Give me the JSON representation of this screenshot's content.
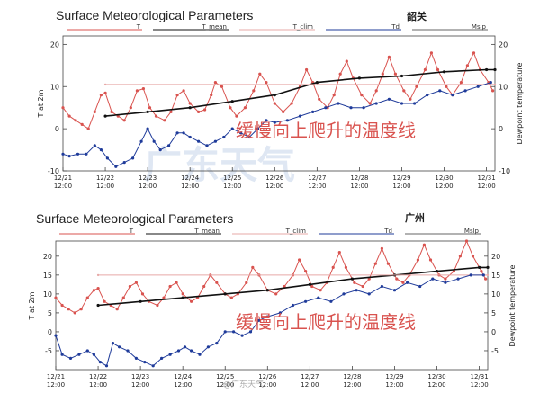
{
  "colors": {
    "T": "#d9534f",
    "T_mean": "#111111",
    "T_clim": "#e7a9a7",
    "Td": "#1f3b9a",
    "Mslp": "#666666",
    "note": "#d9534f",
    "watermark": "#dfe7f3"
  },
  "credit": "@广东天气",
  "chart_data": [
    {
      "type": "line",
      "title": "Surface Meteorological Parameters",
      "station": "韶关",
      "ylabel": "T at 2m",
      "y2label": "Dewpoint temperature",
      "ylim": [
        -10,
        22
      ],
      "yticks": [
        "20",
        "10",
        "0",
        "-10"
      ],
      "y2ticks": [
        "20",
        "10",
        "0",
        "-10"
      ],
      "xlim": [
        0,
        10.2
      ],
      "xticks": [
        {
          "date": "12/21",
          "time": "12:00"
        },
        {
          "date": "12/22",
          "time": "12:00"
        },
        {
          "date": "12/23",
          "time": "12:00"
        },
        {
          "date": "12/24",
          "time": "12:00"
        },
        {
          "date": "12/25",
          "time": "12:00"
        },
        {
          "date": "12/26",
          "time": "12:00"
        },
        {
          "date": "12/27",
          "time": "12:00"
        },
        {
          "date": "12/28",
          "time": "12:00"
        },
        {
          "date": "12/29",
          "time": "12:00"
        },
        {
          "date": "12/30",
          "time": "12:00"
        },
        {
          "date": "12/31",
          "time": "12:00"
        }
      ],
      "legend": [
        "T",
        "T_mean",
        "T_clim",
        "Td",
        "Mslp"
      ],
      "legend_placement": "top",
      "annotation": "缓慢向上爬升的温度线",
      "watermark": "广东天气",
      "grid": false,
      "series": [
        {
          "name": "T",
          "points": [
            [
              0,
              5
            ],
            [
              0.15,
              3
            ],
            [
              0.3,
              2
            ],
            [
              0.45,
              1
            ],
            [
              0.6,
              0
            ],
            [
              0.75,
              4
            ],
            [
              0.9,
              8
            ],
            [
              1,
              8.5
            ],
            [
              1.15,
              4
            ],
            [
              1.3,
              3
            ],
            [
              1.45,
              2
            ],
            [
              1.6,
              5
            ],
            [
              1.75,
              9
            ],
            [
              1.9,
              9.5
            ],
            [
              2.05,
              5
            ],
            [
              2.2,
              3
            ],
            [
              2.4,
              2
            ],
            [
              2.55,
              4
            ],
            [
              2.7,
              8
            ],
            [
              2.85,
              9
            ],
            [
              3,
              6
            ],
            [
              3.2,
              4
            ],
            [
              3.35,
              4.5
            ],
            [
              3.5,
              8
            ],
            [
              3.6,
              11
            ],
            [
              3.75,
              10
            ],
            [
              3.95,
              5
            ],
            [
              4.1,
              3
            ],
            [
              4.3,
              5
            ],
            [
              4.5,
              9
            ],
            [
              4.65,
              13
            ],
            [
              4.8,
              11
            ],
            [
              5,
              6
            ],
            [
              5.2,
              4
            ],
            [
              5.4,
              6
            ],
            [
              5.6,
              10
            ],
            [
              5.75,
              14
            ],
            [
              5.9,
              11
            ],
            [
              6.05,
              7
            ],
            [
              6.25,
              5
            ],
            [
              6.4,
              8
            ],
            [
              6.55,
              13
            ],
            [
              6.7,
              16
            ],
            [
              6.85,
              12
            ],
            [
              7.05,
              8
            ],
            [
              7.25,
              6
            ],
            [
              7.4,
              9
            ],
            [
              7.55,
              13
            ],
            [
              7.7,
              17
            ],
            [
              7.85,
              13
            ],
            [
              8.05,
              9
            ],
            [
              8.2,
              7
            ],
            [
              8.35,
              10
            ],
            [
              8.55,
              14
            ],
            [
              8.7,
              18
            ],
            [
              8.85,
              14
            ],
            [
              9.05,
              10
            ],
            [
              9.2,
              8
            ],
            [
              9.4,
              11
            ],
            [
              9.55,
              15
            ],
            [
              9.7,
              18
            ],
            [
              9.85,
              14
            ],
            [
              10.05,
              11
            ],
            [
              10.15,
              9
            ]
          ]
        },
        {
          "name": "T_mean",
          "points": [
            [
              1,
              3
            ],
            [
              2,
              4
            ],
            [
              3,
              5
            ],
            [
              4,
              6.5
            ],
            [
              5,
              8
            ],
            [
              6,
              11
            ],
            [
              7,
              12
            ],
            [
              8,
              12.5
            ],
            [
              9,
              13.5
            ],
            [
              10,
              14
            ],
            [
              10.2,
              14
            ]
          ]
        },
        {
          "name": "T_clim",
          "points": [
            [
              1,
              10.5
            ],
            [
              10.2,
              10.5
            ]
          ]
        },
        {
          "name": "Td",
          "points": [
            [
              0,
              -6
            ],
            [
              0.15,
              -6.5
            ],
            [
              0.35,
              -6
            ],
            [
              0.55,
              -6
            ],
            [
              0.75,
              -4
            ],
            [
              0.9,
              -5
            ],
            [
              1.05,
              -7
            ],
            [
              1.25,
              -9
            ],
            [
              1.45,
              -8
            ],
            [
              1.65,
              -7
            ],
            [
              1.85,
              -3
            ],
            [
              2,
              0
            ],
            [
              2.15,
              -3
            ],
            [
              2.3,
              -5
            ],
            [
              2.5,
              -4
            ],
            [
              2.7,
              -1
            ],
            [
              2.85,
              -1
            ],
            [
              3,
              -2
            ],
            [
              3.2,
              -3
            ],
            [
              3.4,
              -4
            ],
            [
              3.6,
              -3
            ],
            [
              3.8,
              -2
            ],
            [
              4,
              0
            ],
            [
              4.2,
              -1
            ],
            [
              4.4,
              -2
            ],
            [
              4.6,
              0
            ],
            [
              4.8,
              2
            ],
            [
              5,
              1.5
            ],
            [
              5.3,
              2
            ],
            [
              5.6,
              3
            ],
            [
              5.9,
              4
            ],
            [
              6.2,
              5
            ],
            [
              6.5,
              6
            ],
            [
              6.8,
              5
            ],
            [
              7.1,
              5
            ],
            [
              7.4,
              6
            ],
            [
              7.7,
              7
            ],
            [
              8,
              6
            ],
            [
              8.3,
              6
            ],
            [
              8.6,
              8
            ],
            [
              8.9,
              9
            ],
            [
              9.2,
              8
            ],
            [
              9.5,
              9
            ],
            [
              9.8,
              10
            ],
            [
              10.1,
              11
            ]
          ]
        }
      ]
    },
    {
      "type": "line",
      "title": "Surface Meteorological Parameters",
      "station": "广州",
      "ylabel": "T at 2m",
      "y2label": "Dewpoint temperature",
      "ylim": [
        -10,
        24
      ],
      "yticks": [
        "20",
        "15",
        "10",
        "5",
        "0",
        "-5"
      ],
      "y2ticks": [
        "20",
        "15",
        "10",
        "5",
        "0",
        "-5"
      ],
      "xlim": [
        0,
        10.2
      ],
      "xticks": [
        {
          "date": "12/21",
          "time": "12:00"
        },
        {
          "date": "12/22",
          "time": "12:00"
        },
        {
          "date": "12/23",
          "time": "12:00"
        },
        {
          "date": "12/24",
          "time": "12:00"
        },
        {
          "date": "12/25",
          "time": "12:00"
        },
        {
          "date": "12/26",
          "time": "12:00"
        },
        {
          "date": "12/27",
          "time": "12:00"
        },
        {
          "date": "12/28",
          "time": "12:00"
        },
        {
          "date": "12/29",
          "time": "12:00"
        },
        {
          "date": "12/30",
          "time": "12:00"
        },
        {
          "date": "12/31",
          "time": "12:00"
        }
      ],
      "legend": [
        "T",
        "T_mean",
        "T_clim",
        "Td",
        "Mslp"
      ],
      "legend_placement": "top",
      "annotation": "缓慢向上爬升的温度线",
      "grid": false,
      "series": [
        {
          "name": "T",
          "points": [
            [
              0,
              9
            ],
            [
              0.15,
              7
            ],
            [
              0.3,
              6
            ],
            [
              0.45,
              5
            ],
            [
              0.6,
              6
            ],
            [
              0.75,
              9
            ],
            [
              0.9,
              11
            ],
            [
              1,
              11.5
            ],
            [
              1.15,
              8
            ],
            [
              1.3,
              7
            ],
            [
              1.45,
              6
            ],
            [
              1.6,
              9
            ],
            [
              1.75,
              12
            ],
            [
              1.9,
              13
            ],
            [
              2.05,
              10
            ],
            [
              2.2,
              8
            ],
            [
              2.4,
              7
            ],
            [
              2.55,
              9
            ],
            [
              2.7,
              12
            ],
            [
              2.85,
              13
            ],
            [
              3,
              10
            ],
            [
              3.2,
              8
            ],
            [
              3.35,
              9
            ],
            [
              3.5,
              12
            ],
            [
              3.65,
              15
            ],
            [
              3.8,
              13
            ],
            [
              4,
              10
            ],
            [
              4.15,
              9
            ],
            [
              4.3,
              10
            ],
            [
              4.5,
              13
            ],
            [
              4.65,
              17
            ],
            [
              4.8,
              15
            ],
            [
              5,
              11
            ],
            [
              5.2,
              10
            ],
            [
              5.4,
              12
            ],
            [
              5.6,
              15
            ],
            [
              5.75,
              19
            ],
            [
              5.9,
              16
            ],
            [
              6.05,
              12
            ],
            [
              6.25,
              11
            ],
            [
              6.4,
              13
            ],
            [
              6.55,
              17
            ],
            [
              6.7,
              21
            ],
            [
              6.85,
              17
            ],
            [
              7.05,
              13
            ],
            [
              7.25,
              12
            ],
            [
              7.4,
              14
            ],
            [
              7.55,
              18
            ],
            [
              7.7,
              22
            ],
            [
              7.85,
              18
            ],
            [
              8.05,
              14
            ],
            [
              8.2,
              13
            ],
            [
              8.35,
              15
            ],
            [
              8.55,
              19
            ],
            [
              8.7,
              23
            ],
            [
              8.85,
              19
            ],
            [
              9.05,
              15
            ],
            [
              9.2,
              14
            ],
            [
              9.4,
              16
            ],
            [
              9.55,
              20
            ],
            [
              9.7,
              24
            ],
            [
              9.85,
              20
            ],
            [
              10.05,
              16
            ],
            [
              10.15,
              14
            ]
          ]
        },
        {
          "name": "T_mean",
          "points": [
            [
              1,
              7
            ],
            [
              2,
              8
            ],
            [
              3,
              9
            ],
            [
              4,
              10
            ],
            [
              5,
              11
            ],
            [
              6,
              12.5
            ],
            [
              7,
              14
            ],
            [
              8,
              15
            ],
            [
              9,
              16
            ],
            [
              10,
              17
            ],
            [
              10.2,
              17
            ]
          ]
        },
        {
          "name": "T_clim",
          "points": [
            [
              1,
              15
            ],
            [
              10.2,
              15
            ]
          ]
        },
        {
          "name": "Td",
          "points": [
            [
              0,
              -1
            ],
            [
              0.15,
              -6
            ],
            [
              0.35,
              -7
            ],
            [
              0.55,
              -6
            ],
            [
              0.75,
              -5
            ],
            [
              0.9,
              -6
            ],
            [
              1.05,
              -8
            ],
            [
              1.2,
              -9
            ],
            [
              1.35,
              -3
            ],
            [
              1.5,
              -4
            ],
            [
              1.7,
              -5
            ],
            [
              1.9,
              -7
            ],
            [
              2.1,
              -8
            ],
            [
              2.3,
              -9
            ],
            [
              2.5,
              -7
            ],
            [
              2.7,
              -6
            ],
            [
              2.9,
              -5
            ],
            [
              3.05,
              -4
            ],
            [
              3.2,
              -5
            ],
            [
              3.4,
              -6
            ],
            [
              3.6,
              -4
            ],
            [
              3.8,
              -3
            ],
            [
              4,
              0
            ],
            [
              4.2,
              0
            ],
            [
              4.4,
              -1
            ],
            [
              4.6,
              0
            ],
            [
              4.8,
              3
            ],
            [
              5,
              4
            ],
            [
              5.3,
              5
            ],
            [
              5.6,
              7
            ],
            [
              5.9,
              8
            ],
            [
              6.2,
              9
            ],
            [
              6.5,
              8
            ],
            [
              6.8,
              10
            ],
            [
              7.1,
              11
            ],
            [
              7.4,
              10
            ],
            [
              7.7,
              12
            ],
            [
              8,
              11
            ],
            [
              8.3,
              13
            ],
            [
              8.6,
              12
            ],
            [
              8.9,
              14
            ],
            [
              9.2,
              13
            ],
            [
              9.5,
              14
            ],
            [
              9.8,
              15
            ],
            [
              10.1,
              15
            ]
          ]
        }
      ]
    }
  ]
}
